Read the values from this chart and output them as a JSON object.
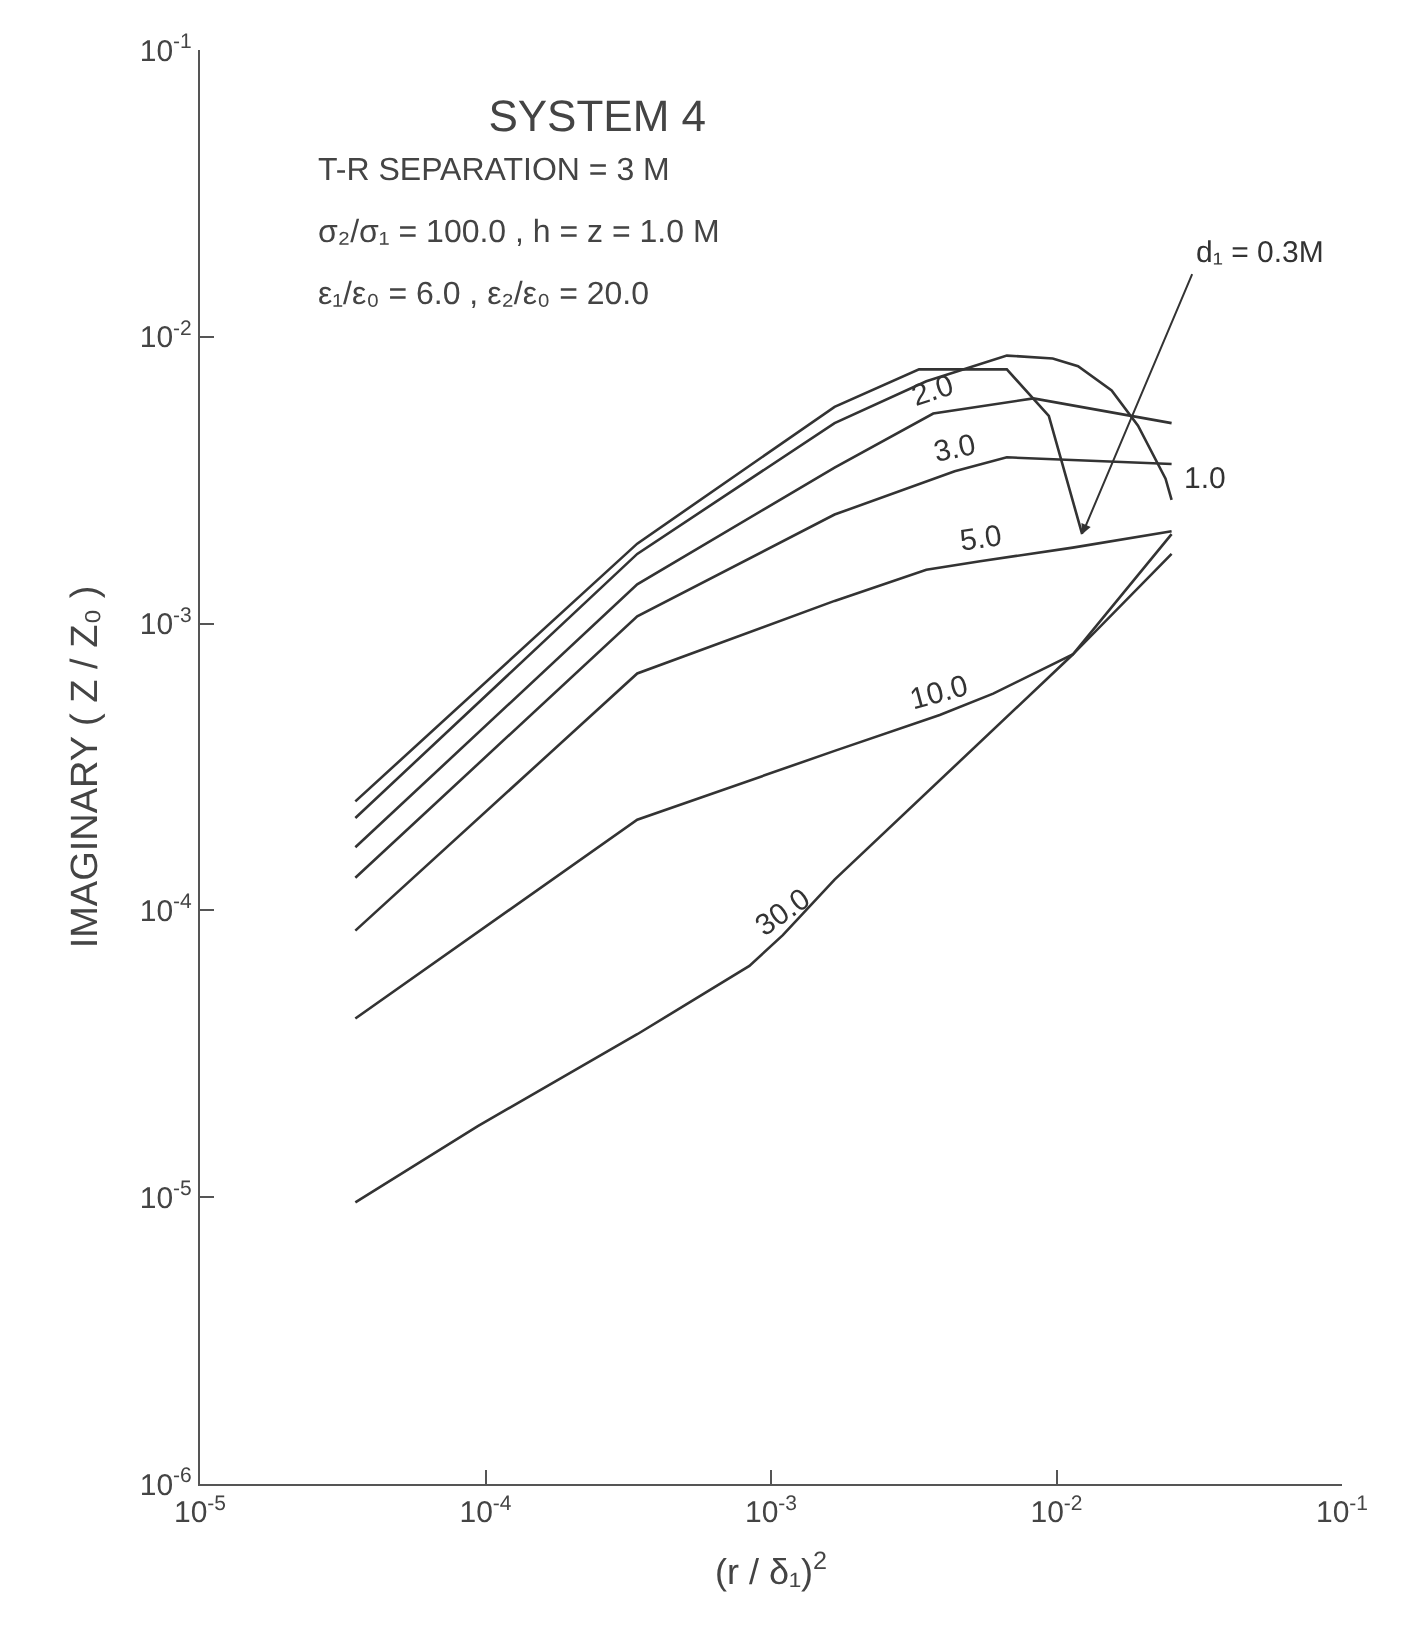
{
  "chart_data": {
    "type": "line",
    "title": "SYSTEM 4",
    "xlabel": "(r / δ₁)$^{2}$",
    "ylabel": "IMAGINARY ( Z / Z₀ )",
    "annotations": [
      "T-R SEPARATION = 3 M",
      "σ₂/σ₁ = 100.0 , h = z = 1.0 M",
      "ε₁/ε₀ = 6.0 , ε₂/ε₀ = 20.0"
    ],
    "log": "xy",
    "legend": false,
    "marker": "none",
    "line_style": "solid",
    "xlim": [
      1e-05,
      0.1
    ],
    "ylim": [
      1e-06,
      0.1
    ],
    "xticks": [
      {
        "value": 1e-05,
        "label": "10$^{-5}$"
      },
      {
        "value": 0.0001,
        "label": "10$^{-4}$"
      },
      {
        "value": 0.001,
        "label": "10$^{-3}$"
      },
      {
        "value": 0.01,
        "label": "10$^{-2}$"
      },
      {
        "value": 0.1,
        "label": "10$^{-1}$"
      }
    ],
    "yticks": [
      {
        "value": 1e-06,
        "label": "10$^{-6}$"
      },
      {
        "value": 1e-05,
        "label": "10$^{-5}$"
      },
      {
        "value": 0.0001,
        "label": "10$^{-4}$"
      },
      {
        "value": 0.001,
        "label": "10$^{-3}$"
      },
      {
        "value": 0.01,
        "label": "10$^{-2}$"
      },
      {
        "value": 0.1,
        "label": "10$^{-1}$"
      }
    ],
    "series": [
      {
        "name": "d₁ = 0.3M",
        "color": "#333333",
        "x": [
          3.5e-05,
          0.00034,
          0.00167,
          0.0033,
          0.0067,
          0.0094,
          0.0123
        ],
        "values": [
          0.00024,
          0.0019,
          0.0057,
          0.0077,
          0.0077,
          0.0053,
          0.00205
        ]
      },
      {
        "name": "1.0",
        "color": "#333333",
        "x": [
          3.5e-05,
          0.00034,
          0.00167,
          0.0035,
          0.0067,
          0.0097,
          0.0119,
          0.0156,
          0.0193,
          0.0241,
          0.0253
        ],
        "values": [
          0.00021,
          0.00175,
          0.005,
          0.007,
          0.0086,
          0.0084,
          0.0079,
          0.0065,
          0.0049,
          0.0032,
          0.0027
        ]
      },
      {
        "name": "2.0",
        "color": "#333333",
        "x": [
          3.5e-05,
          0.00034,
          0.00167,
          0.0037,
          0.0083,
          0.0253
        ],
        "values": [
          0.000166,
          0.00137,
          0.0035,
          0.0054,
          0.0061,
          0.005
        ]
      },
      {
        "name": "3.0",
        "color": "#333333",
        "x": [
          3.5e-05,
          0.00034,
          0.00167,
          0.0044,
          0.0067,
          0.0253
        ],
        "values": [
          0.00013,
          0.00106,
          0.0024,
          0.0034,
          0.0038,
          0.0036
        ]
      },
      {
        "name": "5.0",
        "color": "#333333",
        "x": [
          3.5e-05,
          0.00034,
          0.00167,
          0.0035,
          0.0054,
          0.0114,
          0.0253
        ],
        "values": [
          8.5e-05,
          0.00067,
          0.0012,
          0.00154,
          0.00165,
          0.00184,
          0.0021
        ]
      },
      {
        "name": "10.0",
        "color": "#333333",
        "x": [
          3.5e-05,
          0.00034,
          0.00167,
          0.0039,
          0.006,
          0.0114,
          0.0253
        ],
        "values": [
          4.2e-05,
          0.000207,
          0.00036,
          0.00048,
          0.00057,
          0.00078,
          0.00175
        ]
      },
      {
        "name": "30.0",
        "color": "#333333",
        "x": [
          3.5e-05,
          9.4e-05,
          0.00034,
          0.00084,
          0.0011,
          0.00167,
          0.0114,
          0.0253
        ],
        "values": [
          9.6e-06,
          1.77e-05,
          3.7e-05,
          6.4e-05,
          8.2e-05,
          0.000128,
          0.00078,
          0.00205
        ]
      }
    ]
  }
}
